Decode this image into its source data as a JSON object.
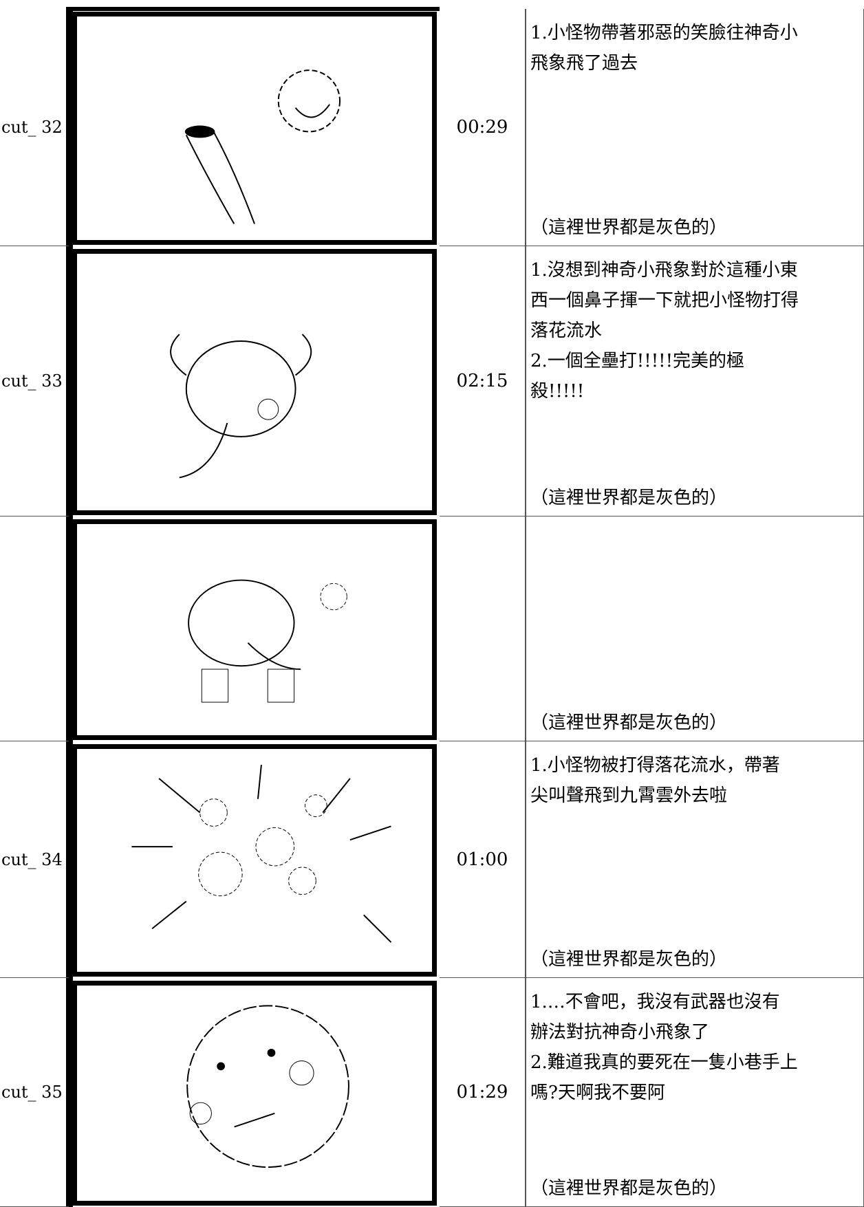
{
  "rows": [
    {
      "cut": "cut_ 32",
      "time": "00:29",
      "lines": [
        "1.小怪物帶著邪惡的笑臉往神奇小",
        "飛象飛了過去"
      ],
      "note": "（這裡世界都是灰色的）"
    },
    {
      "cut": "cut_ 33",
      "time": "02:15",
      "lines": [
        "1.沒想到神奇小飛象對於這種小東",
        "西一個鼻子揮一下就把小怪物打得",
        "落花流水",
        "2.一個全壘打!!!!!完美的極",
        "殺!!!!!"
      ],
      "note": "（這裡世界都是灰色的）"
    },
    {
      "note": "（這裡世界都是灰色的）"
    },
    {
      "cut": "cut_ 34",
      "time": "01:00",
      "lines": [
        "1.小怪物被打得落花流水，帶著",
        "尖叫聲飛到九霄雲外去啦"
      ],
      "note": "（這裡世界都是灰色的）"
    },
    {
      "cut": "cut_ 35",
      "time": "01:29",
      "lines": [
        "1.…不會吧，我沒有武器也沒有",
        "辦法對抗神奇小飛象了",
        "2.難道我真的要死在一隻小巷手上",
        "嗎?天啊我不要阿"
      ],
      "note": "（這裡世界都是灰色的）"
    }
  ]
}
